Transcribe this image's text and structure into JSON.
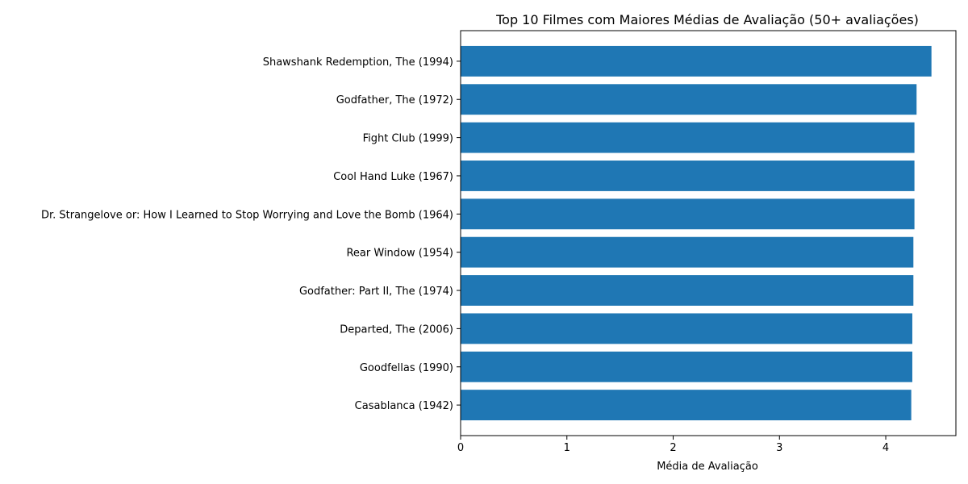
{
  "chart_data": {
    "type": "bar",
    "orientation": "horizontal",
    "title": "Top 10 Filmes com Maiores Médias de Avaliação (50+ avaliações)",
    "xlabel": "Média de Avaliação",
    "ylabel": "",
    "xlim": [
      0,
      4.66
    ],
    "xticks": [
      0,
      1,
      2,
      3,
      4
    ],
    "grid": false,
    "bar_color": "#1f77b4",
    "categories": [
      "Shawshank Redemption, The (1994)",
      "Godfather, The (1972)",
      "Fight Club (1999)",
      "Cool Hand Luke (1967)",
      "Dr. Strangelove or: How I Learned to Stop Worrying and Love the Bomb (1964)",
      "Rear Window (1954)",
      "Godfather: Part II, The (1974)",
      "Departed, The (2006)",
      "Goodfellas (1990)",
      "Casablanca (1942)"
    ],
    "values": [
      4.43,
      4.29,
      4.27,
      4.27,
      4.27,
      4.26,
      4.26,
      4.25,
      4.25,
      4.24
    ]
  }
}
